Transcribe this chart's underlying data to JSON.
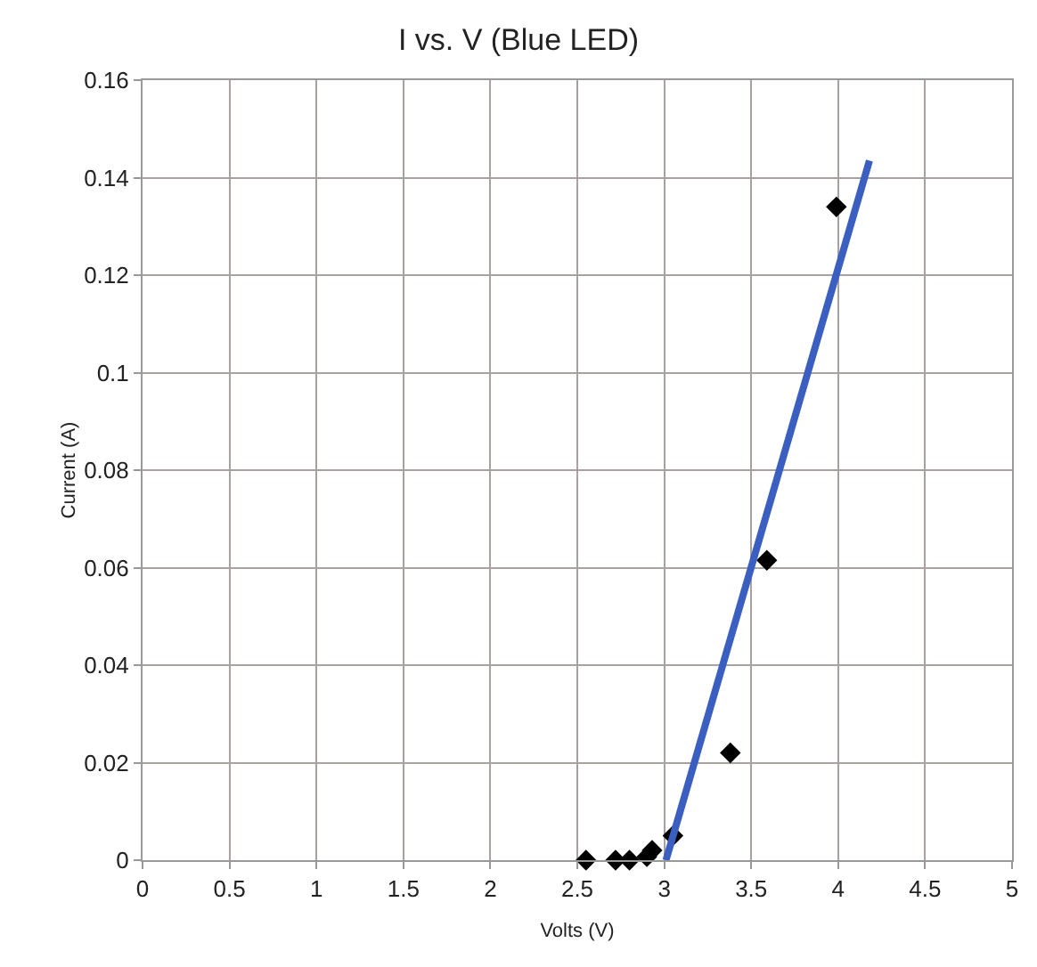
{
  "chart_data": {
    "type": "scatter",
    "title": "I vs. V (Blue LED)",
    "xlabel": "Volts (V)",
    "ylabel": "Current (A)",
    "x": [
      2.55,
      2.72,
      2.8,
      2.9,
      2.93,
      3.05,
      3.38,
      3.59,
      3.99
    ],
    "series": [
      {
        "color": "#000000",
        "marker": "diamond",
        "values": [
          0,
          0,
          0,
          0.0007,
          0.002,
          0.005,
          0.022,
          0.0615,
          0.134
        ]
      },
      {
        "type": "line",
        "color": "#3a5fc0",
        "x": [
          3.01,
          4.18
        ],
        "values": [
          0,
          0.1435
        ]
      }
    ],
    "xlim": [
      0,
      5
    ],
    "xticks": [
      0,
      0.5,
      1,
      1.5,
      2,
      2.5,
      3,
      3.5,
      4,
      4.5,
      5
    ],
    "ylim": [
      0,
      0.16
    ],
    "yticks": [
      0,
      0.02,
      0.04,
      0.06,
      0.08,
      0.1,
      0.12,
      0.14,
      0.16
    ],
    "grid": true
  }
}
